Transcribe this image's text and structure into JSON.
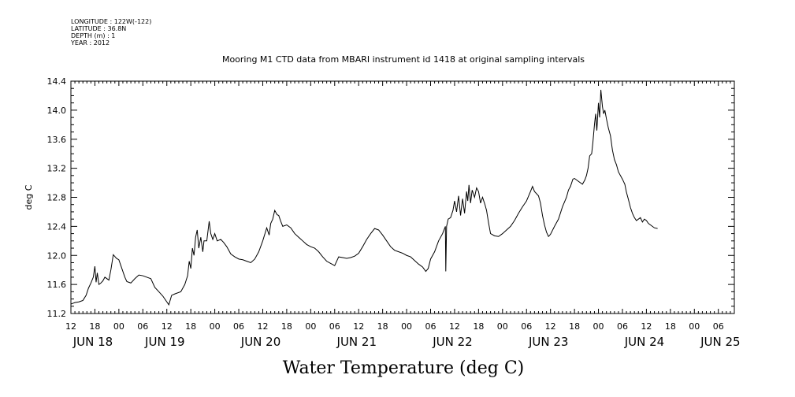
{
  "header": {
    "longitude": "LONGITUDE : 122W(-122)",
    "latitude": "LATITUDE : 36.8N",
    "depth": "DEPTH (m) : 1",
    "year": "YEAR : 2012"
  },
  "chart_data": {
    "type": "line",
    "title": "Mooring M1 CTD data from MBARI instrument id 1418 at original sampling intervals",
    "ylabel": "deg C",
    "footer_label": "Water Temperature (deg C)",
    "ylim": [
      11.2,
      14.4
    ],
    "y_ticks": [
      "11.2",
      "11.6",
      "12.0",
      "12.4",
      "12.8",
      "13.2",
      "13.6",
      "14.0",
      "14.4"
    ],
    "x_range_hours": [
      0,
      166
    ],
    "x_hour_ticks": [
      {
        "h": 0,
        "label": "12"
      },
      {
        "h": 6,
        "label": "18"
      },
      {
        "h": 12,
        "label": "00"
      },
      {
        "h": 18,
        "label": "06"
      },
      {
        "h": 24,
        "label": "12"
      },
      {
        "h": 30,
        "label": "18"
      },
      {
        "h": 36,
        "label": "00"
      },
      {
        "h": 42,
        "label": "06"
      },
      {
        "h": 48,
        "label": "12"
      },
      {
        "h": 54,
        "label": "18"
      },
      {
        "h": 60,
        "label": "00"
      },
      {
        "h": 66,
        "label": "06"
      },
      {
        "h": 72,
        "label": "12"
      },
      {
        "h": 78,
        "label": "18"
      },
      {
        "h": 84,
        "label": "00"
      },
      {
        "h": 90,
        "label": "06"
      },
      {
        "h": 96,
        "label": "12"
      },
      {
        "h": 102,
        "label": "18"
      },
      {
        "h": 108,
        "label": "00"
      },
      {
        "h": 114,
        "label": "06"
      },
      {
        "h": 120,
        "label": "12"
      },
      {
        "h": 126,
        "label": "18"
      },
      {
        "h": 132,
        "label": "00"
      },
      {
        "h": 138,
        "label": "06"
      },
      {
        "h": 144,
        "label": "12"
      },
      {
        "h": 150,
        "label": "18"
      },
      {
        "h": 156,
        "label": "00"
      },
      {
        "h": 162,
        "label": "06"
      }
    ],
    "x_date_labels": [
      {
        "h": 0,
        "label": "JUN 18"
      },
      {
        "h": 18,
        "label": "JUN 19"
      },
      {
        "h": 42,
        "label": "JUN 20"
      },
      {
        "h": 66,
        "label": "JUN 21"
      },
      {
        "h": 90,
        "label": "JUN 22"
      },
      {
        "h": 114,
        "label": "JUN 23"
      },
      {
        "h": 138,
        "label": "JUN 24"
      },
      {
        "h": 157,
        "label": "JUN 25"
      }
    ],
    "series": [
      {
        "color": "#000000",
        "points": [
          [
            0,
            11.33
          ],
          [
            0.5,
            11.34
          ],
          [
            1,
            11.35
          ],
          [
            2,
            11.36
          ],
          [
            3,
            11.38
          ],
          [
            3.8,
            11.45
          ],
          [
            4.4,
            11.55
          ],
          [
            5,
            11.62
          ],
          [
            5.6,
            11.7
          ],
          [
            6,
            11.85
          ],
          [
            6.3,
            11.63
          ],
          [
            6.6,
            11.76
          ],
          [
            7,
            11.6
          ],
          [
            7.5,
            11.62
          ],
          [
            8,
            11.65
          ],
          [
            8.5,
            11.7
          ],
          [
            9.5,
            11.66
          ],
          [
            10,
            11.8
          ],
          [
            10.6,
            12.01
          ],
          [
            11.4,
            11.96
          ],
          [
            12,
            11.94
          ],
          [
            12.5,
            11.86
          ],
          [
            13.5,
            11.7
          ],
          [
            14,
            11.64
          ],
          [
            15,
            11.62
          ],
          [
            16,
            11.68
          ],
          [
            17,
            11.73
          ],
          [
            18,
            11.72
          ],
          [
            19,
            11.7
          ],
          [
            20,
            11.68
          ],
          [
            21,
            11.56
          ],
          [
            22,
            11.5
          ],
          [
            23,
            11.44
          ],
          [
            24,
            11.36
          ],
          [
            24.5,
            11.32
          ],
          [
            25.2,
            11.45
          ],
          [
            26,
            11.47
          ],
          [
            27.5,
            11.5
          ],
          [
            28.5,
            11.6
          ],
          [
            29.2,
            11.72
          ],
          [
            29.6,
            11.92
          ],
          [
            30,
            11.82
          ],
          [
            30.4,
            12.1
          ],
          [
            30.8,
            12.0
          ],
          [
            31.2,
            12.25
          ],
          [
            31.6,
            12.35
          ],
          [
            32,
            12.1
          ],
          [
            32.5,
            12.25
          ],
          [
            33,
            12.05
          ],
          [
            33.3,
            12.2
          ],
          [
            34,
            12.2
          ],
          [
            34.6,
            12.47
          ],
          [
            35,
            12.3
          ],
          [
            35.5,
            12.22
          ],
          [
            36,
            12.3
          ],
          [
            36.6,
            12.2
          ],
          [
            37.5,
            12.22
          ],
          [
            38.2,
            12.18
          ],
          [
            39,
            12.12
          ],
          [
            40,
            12.02
          ],
          [
            41,
            11.98
          ],
          [
            42,
            11.95
          ],
          [
            43,
            11.94
          ],
          [
            44,
            11.92
          ],
          [
            45,
            11.9
          ],
          [
            46,
            11.95
          ],
          [
            47,
            12.05
          ],
          [
            48,
            12.2
          ],
          [
            49,
            12.38
          ],
          [
            49.6,
            12.28
          ],
          [
            50,
            12.44
          ],
          [
            50.5,
            12.5
          ],
          [
            51,
            12.62
          ],
          [
            51.6,
            12.56
          ],
          [
            52,
            12.55
          ],
          [
            52.5,
            12.47
          ],
          [
            53,
            12.4
          ],
          [
            54,
            12.42
          ],
          [
            55,
            12.38
          ],
          [
            56,
            12.3
          ],
          [
            57,
            12.25
          ],
          [
            58,
            12.2
          ],
          [
            59,
            12.15
          ],
          [
            60,
            12.12
          ],
          [
            61,
            12.1
          ],
          [
            62,
            12.05
          ],
          [
            63,
            11.98
          ],
          [
            64,
            11.92
          ],
          [
            65,
            11.89
          ],
          [
            66,
            11.86
          ],
          [
            67,
            11.98
          ],
          [
            68,
            11.97
          ],
          [
            69,
            11.96
          ],
          [
            70,
            11.97
          ],
          [
            71,
            11.99
          ],
          [
            72,
            12.03
          ],
          [
            73,
            12.12
          ],
          [
            74,
            12.22
          ],
          [
            75,
            12.3
          ],
          [
            76,
            12.37
          ],
          [
            77,
            12.35
          ],
          [
            78,
            12.28
          ],
          [
            79,
            12.2
          ],
          [
            80,
            12.12
          ],
          [
            81,
            12.07
          ],
          [
            82,
            12.05
          ],
          [
            83,
            12.03
          ],
          [
            84,
            12.0
          ],
          [
            85,
            11.98
          ],
          [
            86,
            11.93
          ],
          [
            87,
            11.88
          ],
          [
            88,
            11.84
          ],
          [
            88.8,
            11.78
          ],
          [
            89.4,
            11.82
          ],
          [
            90,
            11.95
          ],
          [
            91,
            12.05
          ],
          [
            92,
            12.2
          ],
          [
            93,
            12.3
          ],
          [
            93.7,
            12.4
          ],
          [
            93.8,
            11.78
          ],
          [
            94,
            12.4
          ],
          [
            94.4,
            12.5
          ],
          [
            95,
            12.52
          ],
          [
            95.6,
            12.62
          ],
          [
            96,
            12.75
          ],
          [
            96.5,
            12.6
          ],
          [
            97,
            12.82
          ],
          [
            97.5,
            12.55
          ],
          [
            98,
            12.78
          ],
          [
            98.5,
            12.58
          ],
          [
            99,
            12.88
          ],
          [
            99.3,
            12.75
          ],
          [
            99.6,
            12.97
          ],
          [
            100,
            12.72
          ],
          [
            100.4,
            12.9
          ],
          [
            101,
            12.8
          ],
          [
            101.5,
            12.93
          ],
          [
            102,
            12.88
          ],
          [
            102.5,
            12.72
          ],
          [
            103,
            12.8
          ],
          [
            103.6,
            12.7
          ],
          [
            104,
            12.62
          ],
          [
            104.5,
            12.45
          ],
          [
            105,
            12.3
          ],
          [
            106,
            12.27
          ],
          [
            107,
            12.26
          ],
          [
            108,
            12.3
          ],
          [
            109,
            12.35
          ],
          [
            110,
            12.4
          ],
          [
            111,
            12.48
          ],
          [
            112,
            12.58
          ],
          [
            113,
            12.67
          ],
          [
            114,
            12.75
          ],
          [
            115,
            12.88
          ],
          [
            115.5,
            12.95
          ],
          [
            116,
            12.88
          ],
          [
            117,
            12.82
          ],
          [
            117.5,
            12.72
          ],
          [
            118,
            12.55
          ],
          [
            118.5,
            12.42
          ],
          [
            119,
            12.32
          ],
          [
            119.5,
            12.26
          ],
          [
            120,
            12.29
          ],
          [
            121,
            12.4
          ],
          [
            122,
            12.5
          ],
          [
            123,
            12.67
          ],
          [
            124,
            12.8
          ],
          [
            124.5,
            12.9
          ],
          [
            125,
            12.95
          ],
          [
            125.6,
            13.05
          ],
          [
            126,
            13.06
          ],
          [
            127,
            13.02
          ],
          [
            128,
            12.98
          ],
          [
            128.6,
            13.04
          ],
          [
            129,
            13.1
          ],
          [
            129.4,
            13.2
          ],
          [
            129.8,
            13.37
          ],
          [
            130.3,
            13.4
          ],
          [
            130.6,
            13.55
          ],
          [
            131,
            13.8
          ],
          [
            131.3,
            13.95
          ],
          [
            131.6,
            13.72
          ],
          [
            132,
            14.1
          ],
          [
            132.3,
            13.9
          ],
          [
            132.6,
            14.28
          ],
          [
            133,
            14.05
          ],
          [
            133.3,
            13.95
          ],
          [
            133.6,
            14.0
          ],
          [
            134,
            13.88
          ],
          [
            134.5,
            13.75
          ],
          [
            135,
            13.65
          ],
          [
            135.5,
            13.45
          ],
          [
            136,
            13.32
          ],
          [
            136.5,
            13.25
          ],
          [
            137,
            13.15
          ],
          [
            138,
            13.05
          ],
          [
            138.6,
            12.98
          ],
          [
            139,
            12.87
          ],
          [
            139.5,
            12.77
          ],
          [
            140,
            12.66
          ],
          [
            140.5,
            12.58
          ],
          [
            141,
            12.52
          ],
          [
            141.5,
            12.48
          ],
          [
            142,
            12.5
          ],
          [
            142.5,
            12.52
          ],
          [
            143,
            12.46
          ],
          [
            143.5,
            12.5
          ],
          [
            144,
            12.48
          ],
          [
            144.5,
            12.44
          ],
          [
            145,
            12.42
          ],
          [
            145.5,
            12.4
          ],
          [
            146,
            12.38
          ],
          [
            146.8,
            12.37
          ]
        ]
      }
    ]
  }
}
